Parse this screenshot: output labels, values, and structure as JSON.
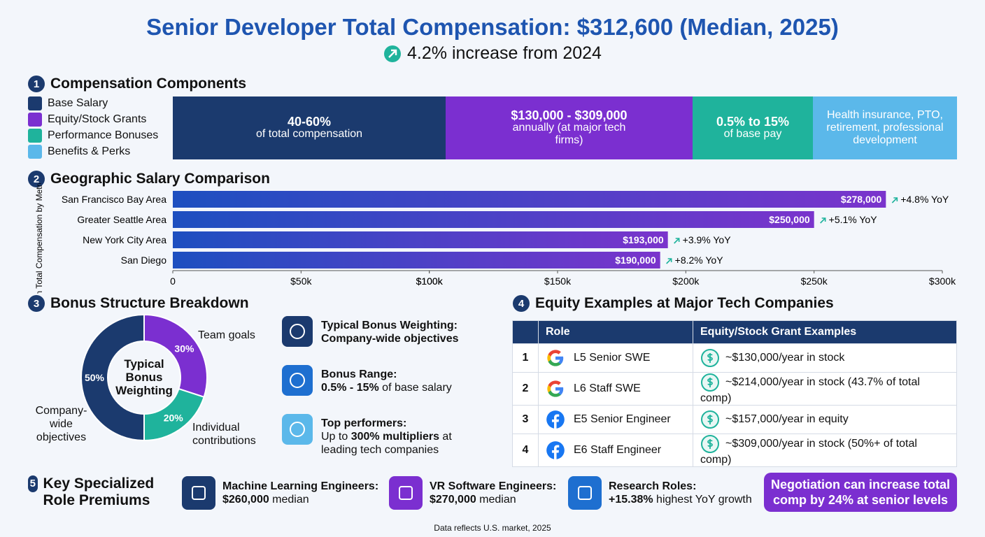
{
  "header": {
    "title": "Senior Developer Total Compensation: $312,600 (Median, 2025)",
    "subtitle": "4.2% increase from 2024"
  },
  "components": {
    "number": "1",
    "heading": "Compensation Components",
    "items": [
      {
        "name": "Base Salary",
        "color": "#1b3a6e",
        "main": "40-60%",
        "sub": "of total compensation"
      },
      {
        "name": "Equity/Stock Grants",
        "color": "#7b2fd0",
        "main": "$130,000 - $309,000",
        "sub": "annually (at major tech firms)"
      },
      {
        "name": "Performance Bonuses",
        "color": "#1fb39c",
        "main": "0.5% to 15%",
        "sub": "of base pay"
      },
      {
        "name": "Benefits & Perks",
        "color": "#5bb8ea",
        "sub": "Health insurance, PTO, retirement, professional development"
      }
    ]
  },
  "chart_data": [
    {
      "type": "bar",
      "orientation": "horizontal",
      "number": "2",
      "title": "Geographic Salary Comparison",
      "y_label": "Median Total Compensation by Metro Area",
      "categories": [
        "San Francisco Bay Area",
        "Greater Seattle Area",
        "New York City Area",
        "San Diego"
      ],
      "values": [
        278000,
        250000,
        193000,
        190000
      ],
      "value_labels": [
        "$278,000",
        "$250,000",
        "$193,000",
        "$190,000"
      ],
      "yoy_labels": [
        "+4.8% YoY",
        "+5.1% YoY",
        "+3.9% YoY",
        "+8.2% YoY"
      ],
      "colors": [
        "#1d4fc0",
        "#7a34cc"
      ],
      "xlim": [
        0,
        300000
      ],
      "xticks": [
        0,
        {
          "value": 50000,
          "label": "$50k"
        },
        {
          "value": 100000,
          "label": "$100k"
        },
        {
          "value": 150000,
          "label": "$150k"
        },
        {
          "value": 100000,
          "label": "$100k"
        },
        {
          "value": 200000,
          "label": "$200k"
        },
        {
          "value": 250000,
          "label": "$250k"
        },
        {
          "value": 300000,
          "label": "$300k"
        }
      ]
    },
    {
      "type": "pie",
      "donut": true,
      "number": "3",
      "title": "Bonus Structure Breakdown",
      "center_label": "Typical Bonus Weighting",
      "categories": [
        "Team goals",
        "Individual contributions",
        "Company-wide objectives"
      ],
      "values": [
        30,
        20,
        50
      ],
      "value_labels": [
        "30%",
        "20%",
        "50%"
      ],
      "colors": [
        "#7b2fd0",
        "#1fb39c",
        "#1b3a6e"
      ]
    }
  ],
  "bonus_items": [
    {
      "lines": [
        [
          {
            "text": "Typical Bonus Weighting:",
            "bold": true
          }
        ],
        [
          {
            "text": "Company-wide objectives",
            "bold": true
          }
        ]
      ]
    },
    {
      "lines": [
        [
          {
            "text": "Bonus Range:",
            "bold": true
          }
        ],
        [
          {
            "text": "0.5% - 15%",
            "bold": true
          },
          {
            "text": " of base salary",
            "bold": false
          }
        ]
      ]
    },
    {
      "lines": [
        [
          {
            "text": "Top performers:",
            "bold": true
          }
        ],
        [
          {
            "text": "Up to ",
            "bold": false
          },
          {
            "text": "300% multipliers",
            "bold": true
          },
          {
            "text": " at",
            "bold": false
          }
        ],
        [
          {
            "text": "leading tech companies",
            "bold": false
          }
        ]
      ]
    }
  ],
  "equity": {
    "number": "4",
    "heading": "Equity Examples at Major Tech Companies",
    "columns": [
      "Role",
      "Equity/Stock Grant Examples"
    ],
    "rows": [
      [
        "1",
        "L5 Senior SWE",
        "~$130,000/year in stock"
      ],
      [
        "2",
        "L6 Staff SWE",
        "~$214,000/year in stock (43.7% of total comp)"
      ],
      [
        "3",
        "E5 Senior Engineer",
        "~$157,000/year in equity"
      ],
      [
        "4",
        "E6 Staff Engineer",
        "~$309,000/year in stock (50%+ of total comp)"
      ]
    ]
  },
  "premiums": {
    "number": "5",
    "heading": "Key Specialized Role Premiums",
    "items": [
      {
        "title": "Machine Learning Engineers:",
        "value": "$260,000",
        "text": " median"
      },
      {
        "title": "VR Software Engineers:",
        "value": "$270,000",
        "text": " median"
      },
      {
        "title": "Research Roles:",
        "value": "+15.38%",
        "text": " highest YoY growth"
      }
    ],
    "callout": "Negotiation can increase total comp by 24% at senior levels"
  },
  "footer": "Data reflects U.S. market, 2025"
}
